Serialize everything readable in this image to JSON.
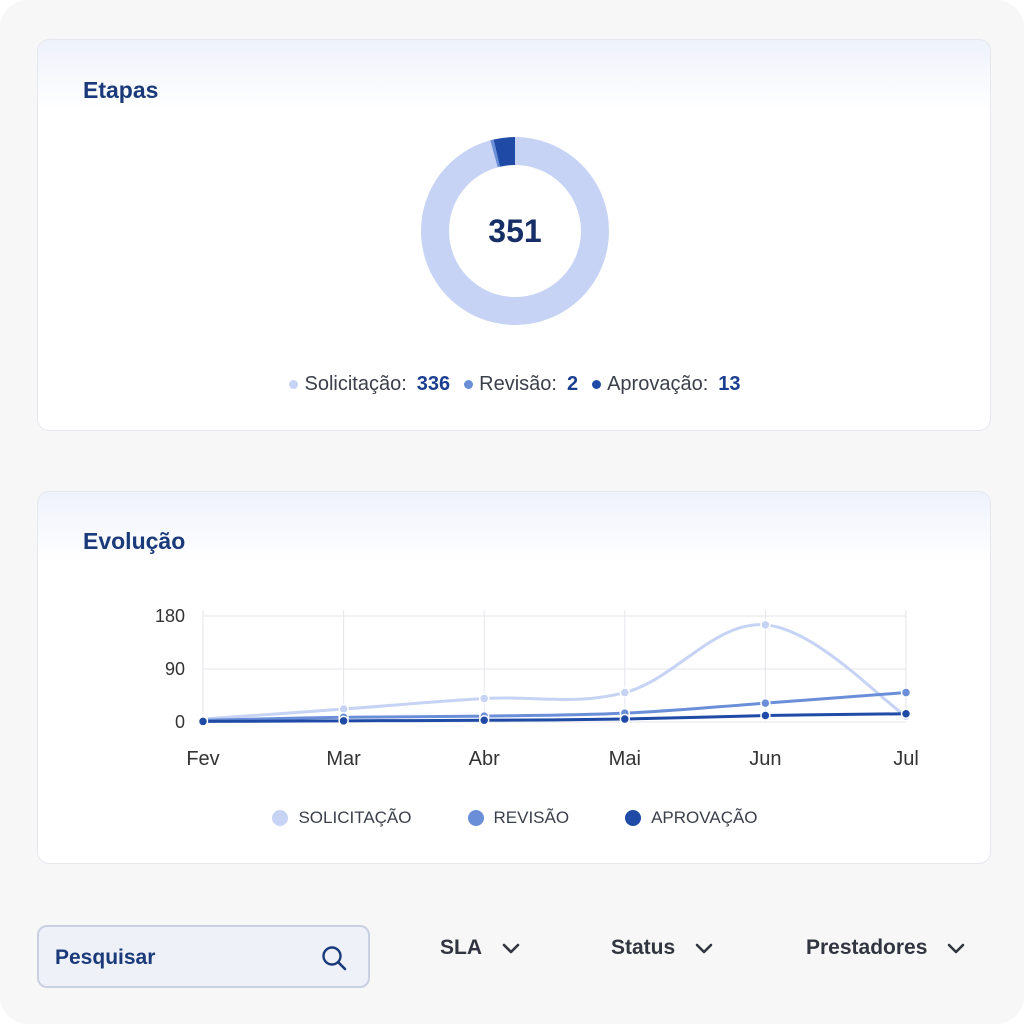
{
  "etapas": {
    "title": "Etapas",
    "total": "351",
    "legend": [
      {
        "label": "Solicitação:",
        "value": "336",
        "color": "#c6d3f4"
      },
      {
        "label": "Revisão:",
        "value": "2",
        "color": "#6a8fd8"
      },
      {
        "label": "Aprovação:",
        "value": "13",
        "color": "#1f4aa5"
      }
    ]
  },
  "evolucao": {
    "title": "Evolução",
    "legend": [
      {
        "label": "SOLICITAÇÃO",
        "color": "#c6d3f4"
      },
      {
        "label": "REVISÃO",
        "color": "#6a8fd8"
      },
      {
        "label": "APROVAÇÃO",
        "color": "#1f4aa5"
      }
    ]
  },
  "chart_data": {
    "type": "line",
    "categories": [
      "Fev",
      "Mar",
      "Abr",
      "Mai",
      "Jun",
      "Jul"
    ],
    "yticks": [
      "180",
      "90",
      "0"
    ],
    "ylim": [
      0,
      180
    ],
    "grid": true,
    "series": [
      {
        "name": "SOLICITAÇÃO",
        "color": "#c6d3f4",
        "values": [
          5,
          22,
          40,
          50,
          165,
          10
        ]
      },
      {
        "name": "REVISÃO",
        "color": "#6a8fd8",
        "values": [
          3,
          8,
          10,
          15,
          32,
          50
        ]
      },
      {
        "name": "APROVAÇÃO",
        "color": "#1f4aa5",
        "values": [
          1,
          2,
          3,
          5,
          11,
          14
        ]
      }
    ]
  },
  "toolbar": {
    "search_placeholder": "Pesquisar",
    "filters": [
      "SLA",
      "Status",
      "Prestadores"
    ]
  },
  "icons": {
    "search": "search-icon",
    "chevron": "chevron-down-icon"
  }
}
